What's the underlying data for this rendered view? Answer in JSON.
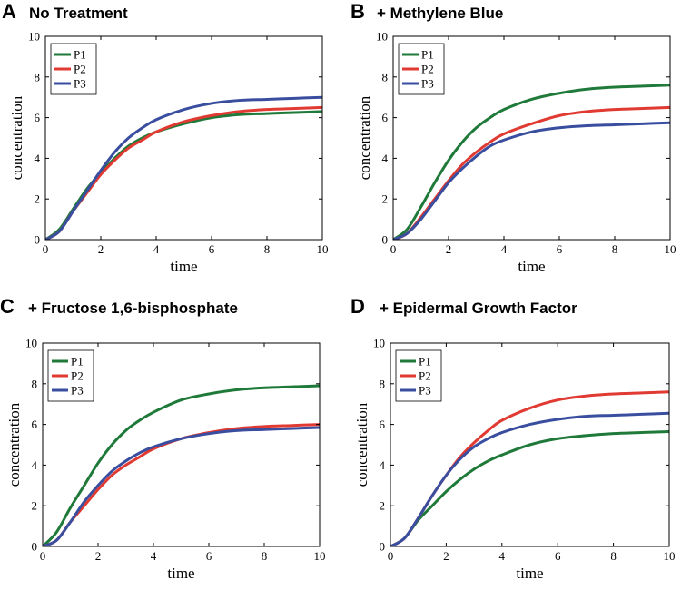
{
  "colors": {
    "P1": "#1f7a3a",
    "P2": "#e03a32",
    "P3": "#3a4ea0"
  },
  "chart_data": [
    {
      "letter": "A",
      "title": "No Treatment",
      "type": "line",
      "xlabel": "time",
      "ylabel": "concentration",
      "xlim": [
        0,
        10
      ],
      "ylim": [
        0,
        10
      ],
      "xticks": [
        0,
        2,
        4,
        6,
        8,
        10
      ],
      "yticks": [
        0,
        2,
        4,
        6,
        8,
        10
      ],
      "legend": "top-left",
      "x": [
        0,
        0.5,
        1,
        1.5,
        2,
        2.5,
        3,
        3.5,
        4,
        5,
        6,
        7,
        8,
        9,
        10
      ],
      "series": [
        {
          "name": "P1",
          "values": [
            0,
            0.5,
            1.5,
            2.5,
            3.3,
            4.0,
            4.6,
            5.0,
            5.3,
            5.7,
            6.0,
            6.15,
            6.2,
            6.25,
            6.3
          ]
        },
        {
          "name": "P2",
          "values": [
            0,
            0.4,
            1.4,
            2.3,
            3.2,
            3.9,
            4.5,
            4.9,
            5.3,
            5.8,
            6.1,
            6.3,
            6.4,
            6.45,
            6.5
          ]
        },
        {
          "name": "P3",
          "values": [
            0,
            0.4,
            1.4,
            2.4,
            3.4,
            4.3,
            5.0,
            5.5,
            5.9,
            6.4,
            6.7,
            6.85,
            6.9,
            6.95,
            7.0
          ]
        }
      ]
    },
    {
      "letter": "B",
      "title": "+ Methylene Blue",
      "type": "line",
      "xlabel": "time",
      "ylabel": "concentration",
      "xlim": [
        0,
        10
      ],
      "ylim": [
        0,
        10
      ],
      "xticks": [
        0,
        2,
        4,
        6,
        8,
        10
      ],
      "yticks": [
        0,
        2,
        4,
        6,
        8,
        10
      ],
      "legend": "top-left",
      "x": [
        0,
        0.5,
        1,
        1.5,
        2,
        2.5,
        3,
        3.5,
        4,
        5,
        6,
        7,
        8,
        9,
        10
      ],
      "series": [
        {
          "name": "P1",
          "values": [
            0,
            0.5,
            1.6,
            2.8,
            3.9,
            4.8,
            5.5,
            6.0,
            6.4,
            6.9,
            7.2,
            7.4,
            7.5,
            7.55,
            7.6
          ]
        },
        {
          "name": "P2",
          "values": [
            0,
            0.3,
            1.1,
            2.0,
            2.9,
            3.7,
            4.3,
            4.8,
            5.2,
            5.7,
            6.1,
            6.3,
            6.4,
            6.45,
            6.5
          ]
        },
        {
          "name": "P3",
          "values": [
            0,
            0.3,
            1.0,
            1.9,
            2.8,
            3.5,
            4.1,
            4.6,
            4.9,
            5.3,
            5.5,
            5.6,
            5.65,
            5.7,
            5.75
          ]
        }
      ]
    },
    {
      "letter": "C",
      "title": "+ Fructose 1,6-bisphosphate",
      "type": "line",
      "xlabel": "time",
      "ylabel": "concentration",
      "xlim": [
        0,
        10
      ],
      "ylim": [
        0,
        10
      ],
      "xticks": [
        0,
        2,
        4,
        6,
        8,
        10
      ],
      "yticks": [
        0,
        2,
        4,
        6,
        8,
        10
      ],
      "legend": "top-left",
      "x": [
        0,
        0.5,
        1,
        1.5,
        2,
        2.5,
        3,
        3.5,
        4,
        5,
        6,
        7,
        8,
        9,
        10
      ],
      "series": [
        {
          "name": "P1",
          "values": [
            0,
            0.7,
            1.9,
            3.0,
            4.1,
            5.0,
            5.7,
            6.2,
            6.6,
            7.2,
            7.5,
            7.7,
            7.8,
            7.85,
            7.9
          ]
        },
        {
          "name": "P2",
          "values": [
            0,
            0.3,
            1.2,
            2.0,
            2.8,
            3.5,
            4.0,
            4.4,
            4.8,
            5.3,
            5.6,
            5.8,
            5.9,
            5.95,
            6.0
          ]
        },
        {
          "name": "P3",
          "values": [
            0,
            0.3,
            1.2,
            2.2,
            3.0,
            3.7,
            4.2,
            4.6,
            4.9,
            5.3,
            5.55,
            5.7,
            5.75,
            5.8,
            5.85
          ]
        }
      ]
    },
    {
      "letter": "D",
      "title": "+ Epidermal Growth Factor",
      "type": "line",
      "xlabel": "time",
      "ylabel": "concentration",
      "xlim": [
        0,
        10
      ],
      "ylim": [
        0,
        10
      ],
      "xticks": [
        0,
        2,
        4,
        6,
        8,
        10
      ],
      "yticks": [
        0,
        2,
        4,
        6,
        8,
        10
      ],
      "legend": "top-left",
      "x": [
        0,
        0.5,
        1,
        1.5,
        2,
        2.5,
        3,
        3.5,
        4,
        5,
        6,
        7,
        8,
        9,
        10
      ],
      "series": [
        {
          "name": "P1",
          "values": [
            0,
            0.4,
            1.3,
            2.0,
            2.7,
            3.3,
            3.8,
            4.2,
            4.5,
            5.0,
            5.3,
            5.45,
            5.55,
            5.6,
            5.65
          ]
        },
        {
          "name": "P2",
          "values": [
            0,
            0.4,
            1.4,
            2.5,
            3.5,
            4.4,
            5.1,
            5.7,
            6.2,
            6.8,
            7.2,
            7.4,
            7.5,
            7.55,
            7.6
          ]
        },
        {
          "name": "P3",
          "values": [
            0,
            0.4,
            1.4,
            2.5,
            3.5,
            4.3,
            4.9,
            5.3,
            5.6,
            6.0,
            6.25,
            6.4,
            6.45,
            6.5,
            6.55
          ]
        }
      ]
    }
  ]
}
